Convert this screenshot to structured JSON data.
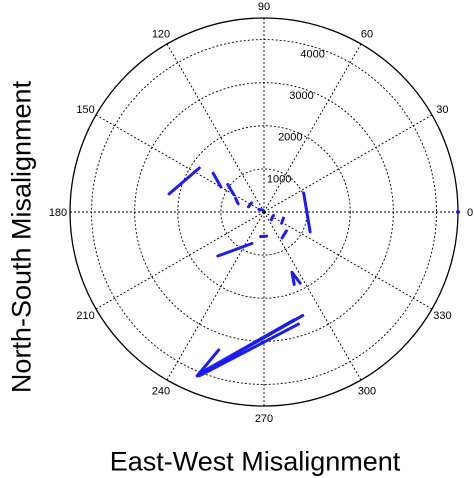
{
  "chart_data": {
    "type": "polar-vector",
    "xlabel": "East-West Misalignment",
    "ylabel": "North-South Misalignment",
    "angle_ticks": [
      "0",
      "30",
      "60",
      "90",
      "120",
      "150",
      "180",
      "210",
      "240",
      "270",
      "300",
      "330"
    ],
    "radial_ticks": [
      "1000",
      "2000",
      "3000",
      "4000"
    ],
    "r_max": 4500,
    "grid": "dotted",
    "series_color": "#1a1aff",
    "vectors": [
      {
        "x0": 1070,
        "y0": -460,
        "x1": 920,
        "y1": 440
      },
      {
        "x0": -1070,
        "y0": -1020,
        "x1": -280,
        "y1": -730
      },
      {
        "x0": -1000,
        "y0": 580,
        "x1": -1180,
        "y1": 900
      },
      {
        "x0": -2200,
        "y0": 420,
        "x1": -1500,
        "y1": 1020
      },
      {
        "x0": -700,
        "y0": 400,
        "x1": -840,
        "y1": 640
      },
      {
        "x0": -600,
        "y0": 190,
        "x1": -660,
        "y1": 320
      },
      {
        "x0": -290,
        "y0": 210,
        "x1": -360,
        "y1": 120
      },
      {
        "x0": 170,
        "y0": -180,
        "x1": 220,
        "y1": -80
      },
      {
        "x0": 410,
        "y0": -260,
        "x1": 450,
        "y1": -140
      },
      {
        "x0": 420,
        "y0": -600,
        "x1": 520,
        "y1": -440
      },
      {
        "x0": -120,
        "y0": 60,
        "x1": -20,
        "y1": 40
      },
      {
        "x0": -80,
        "y0": -570,
        "x1": 60,
        "y1": -560
      },
      {
        "x0": 700,
        "y0": -1680,
        "x1": 650,
        "y1": -1400
      },
      {
        "x0": 650,
        "y0": -1400,
        "x1": 840,
        "y1": -1650
      },
      {
        "x0": 800,
        "y0": -2600,
        "x1": -1500,
        "y1": -3800
      },
      {
        "x0": 900,
        "y0": -2400,
        "x1": -1550,
        "y1": -3800
      },
      {
        "x0": 700,
        "y0": -2500,
        "x1": -1500,
        "y1": -3750
      },
      {
        "x0": -1050,
        "y0": -3200,
        "x1": -1550,
        "y1": -3800
      }
    ]
  }
}
